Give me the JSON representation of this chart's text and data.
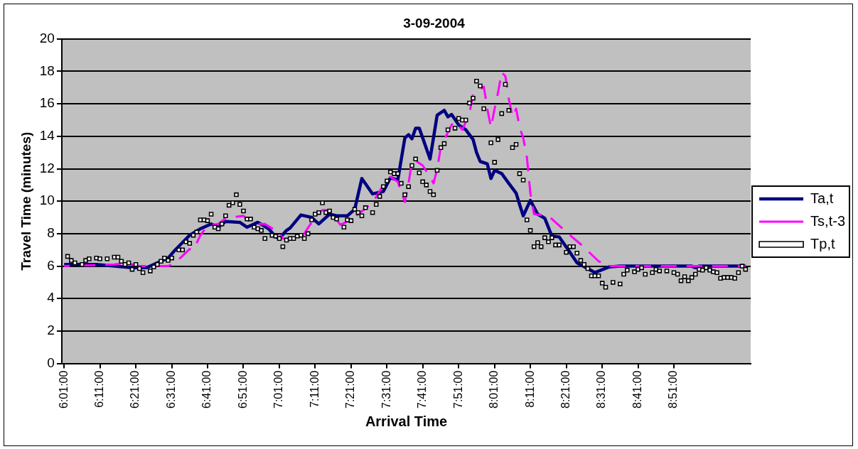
{
  "chart_data": {
    "type": "line",
    "title": "3-09-2004",
    "xlabel": "Arrival Time",
    "ylabel": "Travel Time (minutes)",
    "legend": "right",
    "grid": "y",
    "xlim": [
      6.006,
      9.207
    ],
    "ylim": [
      0,
      20
    ],
    "yticks": [
      0,
      2,
      4,
      6,
      8,
      10,
      12,
      14,
      16,
      18,
      20
    ],
    "xticks": [
      {
        "value": 6.016667,
        "label": "6:01:00"
      },
      {
        "value": 6.183333,
        "label": "6:11:00"
      },
      {
        "value": 6.35,
        "label": "6:21:00"
      },
      {
        "value": 6.516667,
        "label": "6:31:00"
      },
      {
        "value": 6.683333,
        "label": "6:41:00"
      },
      {
        "value": 6.85,
        "label": "6:51:00"
      },
      {
        "value": 7.016667,
        "label": "7:01:00"
      },
      {
        "value": 7.183333,
        "label": "7:11:00"
      },
      {
        "value": 7.35,
        "label": "7:21:00"
      },
      {
        "value": 7.516667,
        "label": "7:31:00"
      },
      {
        "value": 7.683333,
        "label": "7:41:00"
      },
      {
        "value": 7.85,
        "label": "7:51:00"
      },
      {
        "value": 8.016667,
        "label": "8:01:00"
      },
      {
        "value": 8.183333,
        "label": "8:11:00"
      },
      {
        "value": 8.35,
        "label": "8:21:00"
      },
      {
        "value": 8.516667,
        "label": "8:31:00"
      },
      {
        "value": 8.683333,
        "label": "8:41:00"
      },
      {
        "value": 8.85,
        "label": "8:51:00"
      }
    ],
    "series": [
      {
        "name": "Ta,t",
        "type": "line",
        "color": "#000080",
        "marker": "none",
        "line_style": "solid",
        "x": [
          6.017,
          6.167,
          6.25,
          6.333,
          6.4,
          6.433,
          6.5,
          6.533,
          6.6,
          6.65,
          6.7,
          6.733,
          6.767,
          6.833,
          6.867,
          6.917,
          6.967,
          7.0,
          7.017,
          7.05,
          7.067,
          7.117,
          7.167,
          7.2,
          7.25,
          7.283,
          7.333,
          7.367,
          7.4,
          7.45,
          7.5,
          7.533,
          7.567,
          7.6,
          7.617,
          7.633,
          7.65,
          7.667,
          7.717,
          7.75,
          7.783,
          7.8,
          7.817,
          7.85,
          7.883,
          7.917,
          7.933,
          7.95,
          7.983,
          8.0,
          8.017,
          8.05,
          8.083,
          8.117,
          8.133,
          8.15,
          8.183,
          8.217,
          8.25,
          8.283,
          8.317,
          8.367,
          8.4,
          8.45,
          8.483,
          8.55,
          8.6,
          8.933,
          8.95,
          8.967,
          9.183
        ],
        "values": [
          6.1,
          6.1,
          6.0,
          5.9,
          5.9,
          6.1,
          6.5,
          7.0,
          7.9,
          8.3,
          8.6,
          8.4,
          8.75,
          8.7,
          8.4,
          8.7,
          8.3,
          7.8,
          7.7,
          8.2,
          8.35,
          9.15,
          9.0,
          8.6,
          9.2,
          9.1,
          9.1,
          9.5,
          11.4,
          10.45,
          10.6,
          11.45,
          11.3,
          13.9,
          14.1,
          13.85,
          14.5,
          14.5,
          12.6,
          15.3,
          15.6,
          15.2,
          15.35,
          14.7,
          14.4,
          13.8,
          13.0,
          12.45,
          12.3,
          11.4,
          11.9,
          11.7,
          11.1,
          10.5,
          9.8,
          9.1,
          10.05,
          9.2,
          8.95,
          7.85,
          7.8,
          6.85,
          6.2,
          5.85,
          5.6,
          5.95,
          6.0,
          6.0,
          5.9,
          6.0,
          6.0
        ]
      },
      {
        "name": "Ts,t-3",
        "type": "line",
        "color": "#ff00ff",
        "marker": "none",
        "line_style": "dashed",
        "x": [
          6.017,
          6.25,
          6.3,
          6.367,
          6.5,
          6.533,
          6.6,
          6.617,
          6.65,
          6.683,
          6.733,
          6.767,
          6.85,
          6.867,
          6.917,
          6.95,
          7.017,
          7.033,
          7.117,
          7.167,
          7.183,
          7.217,
          7.25,
          7.3,
          7.35,
          7.45,
          7.5,
          7.533,
          7.567,
          7.6,
          7.617,
          7.633,
          7.65,
          7.683,
          7.717,
          7.733,
          7.75,
          7.767,
          7.817,
          7.833,
          7.867,
          7.9,
          7.917,
          7.967,
          7.983,
          8.0,
          8.017,
          8.033,
          8.05,
          8.067,
          8.083,
          8.1,
          8.117,
          8.133,
          8.15,
          8.167,
          8.183,
          8.2,
          8.267,
          8.35,
          8.417,
          8.5,
          8.55,
          9.183
        ],
        "values": [
          6.0,
          6.1,
          6.2,
          6.0,
          6.0,
          6.2,
          7.05,
          7.0,
          7.9,
          8.5,
          8.6,
          8.95,
          9.1,
          8.85,
          8.6,
          8.6,
          8.05,
          7.7,
          7.7,
          8.7,
          9.1,
          9.45,
          9.45,
          8.55,
          8.85,
          9.9,
          11.0,
          11.5,
          11.2,
          9.95,
          11.1,
          12.45,
          12.5,
          12.2,
          11.5,
          11.1,
          11.95,
          13.35,
          14.7,
          14.9,
          14.4,
          15.4,
          16.6,
          17.05,
          15.7,
          14.55,
          15.7,
          16.7,
          17.95,
          17.7,
          16.3,
          15.2,
          15.7,
          14.55,
          13.9,
          12.7,
          10.5,
          9.2,
          9.1,
          8.1,
          7.35,
          6.3,
          6.0,
          6.0
        ]
      },
      {
        "name": "Tp,t",
        "type": "scatter",
        "color": "#000000",
        "marker": "square",
        "x": [
          6.033,
          6.05,
          6.067,
          6.1,
          6.117,
          6.133,
          6.167,
          6.183,
          6.217,
          6.25,
          6.267,
          6.283,
          6.3,
          6.317,
          6.333,
          6.35,
          6.367,
          6.383,
          6.417,
          6.433,
          6.45,
          6.467,
          6.483,
          6.5,
          6.517,
          6.55,
          6.567,
          6.583,
          6.6,
          6.617,
          6.633,
          6.65,
          6.667,
          6.683,
          6.7,
          6.717,
          6.733,
          6.75,
          6.767,
          6.783,
          6.8,
          6.817,
          6.833,
          6.85,
          6.867,
          6.883,
          6.9,
          6.917,
          6.933,
          6.95,
          6.983,
          7.0,
          7.017,
          7.033,
          7.05,
          7.067,
          7.083,
          7.1,
          7.117,
          7.133,
          7.15,
          7.167,
          7.183,
          7.2,
          7.217,
          7.233,
          7.25,
          7.267,
          7.283,
          7.317,
          7.333,
          7.35,
          7.367,
          7.383,
          7.4,
          7.417,
          7.45,
          7.467,
          7.483,
          7.5,
          7.517,
          7.533,
          7.55,
          7.567,
          7.583,
          7.6,
          7.617,
          7.633,
          7.65,
          7.667,
          7.683,
          7.7,
          7.717,
          7.733,
          7.75,
          7.767,
          7.783,
          7.8,
          7.833,
          7.85,
          7.867,
          7.883,
          7.9,
          7.917,
          7.933,
          7.95,
          7.967,
          8.0,
          8.017,
          8.033,
          8.05,
          8.067,
          8.083,
          8.1,
          8.117,
          8.133,
          8.15,
          8.167,
          8.183,
          8.2,
          8.217,
          8.233,
          8.25,
          8.267,
          8.283,
          8.3,
          8.317,
          8.35,
          8.367,
          8.383,
          8.4,
          8.417,
          8.433,
          8.45,
          8.467,
          8.483,
          8.5,
          8.517,
          8.533,
          8.567,
          8.6,
          8.617,
          8.633,
          8.667,
          8.683,
          8.7,
          8.717,
          8.75,
          8.767,
          8.783,
          8.817,
          8.85,
          8.867,
          8.883,
          8.9,
          8.917,
          8.933,
          8.95,
          8.967,
          8.983,
          9.0,
          9.017,
          9.033,
          9.05,
          9.067,
          9.083,
          9.1,
          9.117,
          9.133,
          9.15,
          9.167,
          9.183
        ],
        "values": [
          6.6,
          6.35,
          6.2,
          6.1,
          6.35,
          6.45,
          6.5,
          6.45,
          6.45,
          6.55,
          6.55,
          6.3,
          6.1,
          6.2,
          5.8,
          6.1,
          5.85,
          5.6,
          5.7,
          5.95,
          6.1,
          6.3,
          6.5,
          6.35,
          6.5,
          7.0,
          7.0,
          7.5,
          7.4,
          7.9,
          8.1,
          8.85,
          8.85,
          8.8,
          9.2,
          8.4,
          8.3,
          8.6,
          9.1,
          9.75,
          9.9,
          10.4,
          9.8,
          9.4,
          8.9,
          8.9,
          8.4,
          8.3,
          8.2,
          7.7,
          7.9,
          7.85,
          7.7,
          7.2,
          7.6,
          7.7,
          7.7,
          7.85,
          7.9,
          7.7,
          8.0,
          8.85,
          9.2,
          9.3,
          9.9,
          9.3,
          9.4,
          9.0,
          8.9,
          8.4,
          8.85,
          8.8,
          9.5,
          9.3,
          9.1,
          9.6,
          9.3,
          9.8,
          10.3,
          10.9,
          11.25,
          11.8,
          11.7,
          11.7,
          11.1,
          10.4,
          10.9,
          12.2,
          12.6,
          11.75,
          11.2,
          11.0,
          10.6,
          10.4,
          11.9,
          13.3,
          13.55,
          14.4,
          14.5,
          15.1,
          15.0,
          15.0,
          16.05,
          16.35,
          17.4,
          17.1,
          15.7,
          13.6,
          12.4,
          13.8,
          15.4,
          17.2,
          15.6,
          13.3,
          13.5,
          11.7,
          11.3,
          8.85,
          8.2,
          7.2,
          7.45,
          7.2,
          7.75,
          7.5,
          7.75,
          7.3,
          7.3,
          6.85,
          7.2,
          7.2,
          6.8,
          6.35,
          6.1,
          5.85,
          5.4,
          5.4,
          5.4,
          4.95,
          4.7,
          5.0,
          4.9,
          5.5,
          5.75,
          5.65,
          5.8,
          5.9,
          5.5,
          5.6,
          5.8,
          5.7,
          5.7,
          5.6,
          5.5,
          5.1,
          5.35,
          5.1,
          5.3,
          5.5,
          5.8,
          5.75,
          5.9,
          5.75,
          5.65,
          5.6,
          5.25,
          5.3,
          5.3,
          5.3,
          5.25,
          5.6,
          6.0,
          5.8
        ]
      }
    ]
  }
}
